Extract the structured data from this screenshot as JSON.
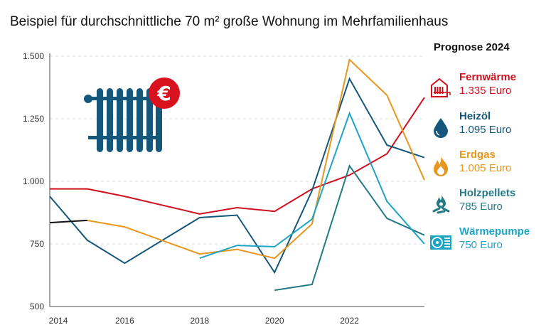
{
  "title": "Beispiel für durchschnittliche 70 m² große Wohnung im Mehrfamilienhaus",
  "legend_title": "Prognose 2024",
  "chart_data": {
    "type": "line",
    "title": "Beispiel für durchschnittliche 70 m² große Wohnung im Mehrfamilienhaus",
    "xlim": [
      2014,
      2024
    ],
    "ylim": [
      500,
      1500
    ],
    "x_ticks": [
      "2014",
      "2016",
      "2018",
      "2020",
      "2022"
    ],
    "y_ticks": [
      "500",
      "750",
      "1.000",
      "1.250",
      "1.500"
    ],
    "grid": "horizontal dashed",
    "legend_placement": "right",
    "series": [
      {
        "name": "Fernwärme",
        "value_label": "1.335 Euro",
        "color": "#d0101f",
        "icon": "district-heating-icon",
        "points": [
          [
            2014,
            970
          ],
          [
            2015,
            970
          ],
          [
            2016,
            940
          ],
          [
            2018,
            870
          ],
          [
            2019,
            895
          ],
          [
            2020,
            880
          ],
          [
            2021,
            970
          ],
          [
            2022,
            1025
          ],
          [
            2023,
            1110
          ],
          [
            2024,
            1335
          ]
        ]
      },
      {
        "name": "Heizöl",
        "value_label": "1.095 Euro",
        "color": "#15577a",
        "icon": "oil-drop-icon",
        "points": [
          [
            2014,
            940
          ],
          [
            2015,
            765
          ],
          [
            2016,
            673
          ],
          [
            2018,
            855
          ],
          [
            2019,
            865
          ],
          [
            2020,
            636
          ],
          [
            2021,
            963
          ],
          [
            2022,
            1410
          ],
          [
            2023,
            1145
          ],
          [
            2024,
            1095
          ]
        ]
      },
      {
        "name": "Erdgas",
        "value_label": "1.005 Euro",
        "color": "#e8961e",
        "icon": "flame-icon",
        "points": [
          [
            2015,
            844
          ],
          [
            2016,
            818
          ],
          [
            2018,
            710
          ],
          [
            2019,
            728
          ],
          [
            2020,
            693
          ],
          [
            2021,
            830
          ],
          [
            2022,
            1486
          ],
          [
            2023,
            1344
          ],
          [
            2024,
            1005
          ]
        ]
      },
      {
        "name": "Holzpellets",
        "value_label": "785 Euro",
        "color": "#237a86",
        "icon": "wood-fire-icon",
        "points": [
          [
            2020,
            565
          ],
          [
            2021,
            588
          ],
          [
            2022,
            1062
          ],
          [
            2023,
            852
          ],
          [
            2024,
            785
          ]
        ]
      },
      {
        "name": "Wärmepumpe",
        "value_label": "750 Euro",
        "color": "#1ea5c4",
        "icon": "heat-pump-icon",
        "points": [
          [
            2018,
            693
          ],
          [
            2019,
            744
          ],
          [
            2020,
            739
          ],
          [
            2021,
            849
          ],
          [
            2022,
            1272
          ],
          [
            2023,
            920
          ],
          [
            2024,
            750
          ]
        ]
      },
      {
        "color": "#111111",
        "points": [
          [
            2014,
            835
          ],
          [
            2015,
            844
          ]
        ]
      }
    ]
  },
  "decoration": {
    "icon": "radiator-euro-icon",
    "colors": {
      "radiator": "#15577a",
      "badge": "#d8121f"
    }
  }
}
